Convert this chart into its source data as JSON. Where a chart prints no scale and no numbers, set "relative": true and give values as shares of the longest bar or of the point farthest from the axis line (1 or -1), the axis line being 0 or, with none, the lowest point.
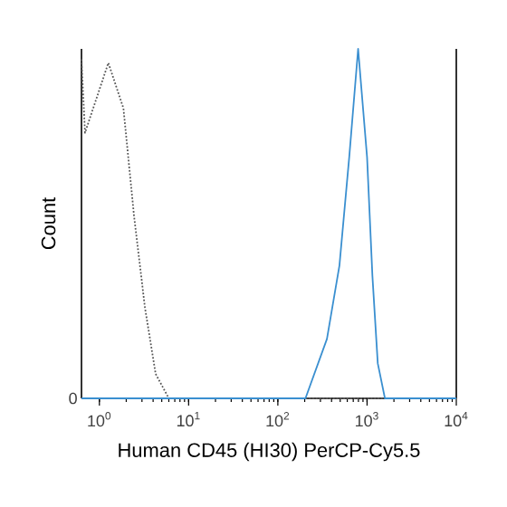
{
  "chart_data": {
    "type": "line",
    "xlabel": "Human CD45 (HI30) PerCP-Cy5.5",
    "ylabel": "Count",
    "log": "x",
    "relative": true,
    "xlim": [
      0.63,
      10000
    ],
    "xticks": [
      {
        "value": 1,
        "label": "10$^{0}$"
      },
      {
        "value": 10,
        "label": "10$^{1}$"
      },
      {
        "value": 100,
        "label": "10$^{2}$"
      },
      {
        "value": 1000,
        "label": "10$^{3}$"
      },
      {
        "value": 10000,
        "label": "10$^{4}$"
      }
    ],
    "annotations": [
      {
        "text": "0",
        "y": 0
      }
    ],
    "series": [
      {
        "color": "#555555",
        "line_style": "dotted",
        "x": [
          0.63,
          0.69,
          1.26,
          1.86,
          2.45,
          3.24,
          4.27,
          6.0,
          10000
        ],
        "values": [
          0.97,
          0.76,
          0.96,
          0.83,
          0.52,
          0.26,
          0.07,
          0,
          0
        ]
      },
      {
        "color": "#3a8fd0",
        "line_style": "solid",
        "x": [
          0.63,
          204,
          355,
          490,
          631,
          794,
          1000,
          1148,
          1318,
          1585,
          10000
        ],
        "values": [
          0,
          0,
          0.17,
          0.38,
          0.69,
          1.0,
          0.69,
          0.35,
          0.1,
          0,
          0
        ]
      }
    ]
  }
}
